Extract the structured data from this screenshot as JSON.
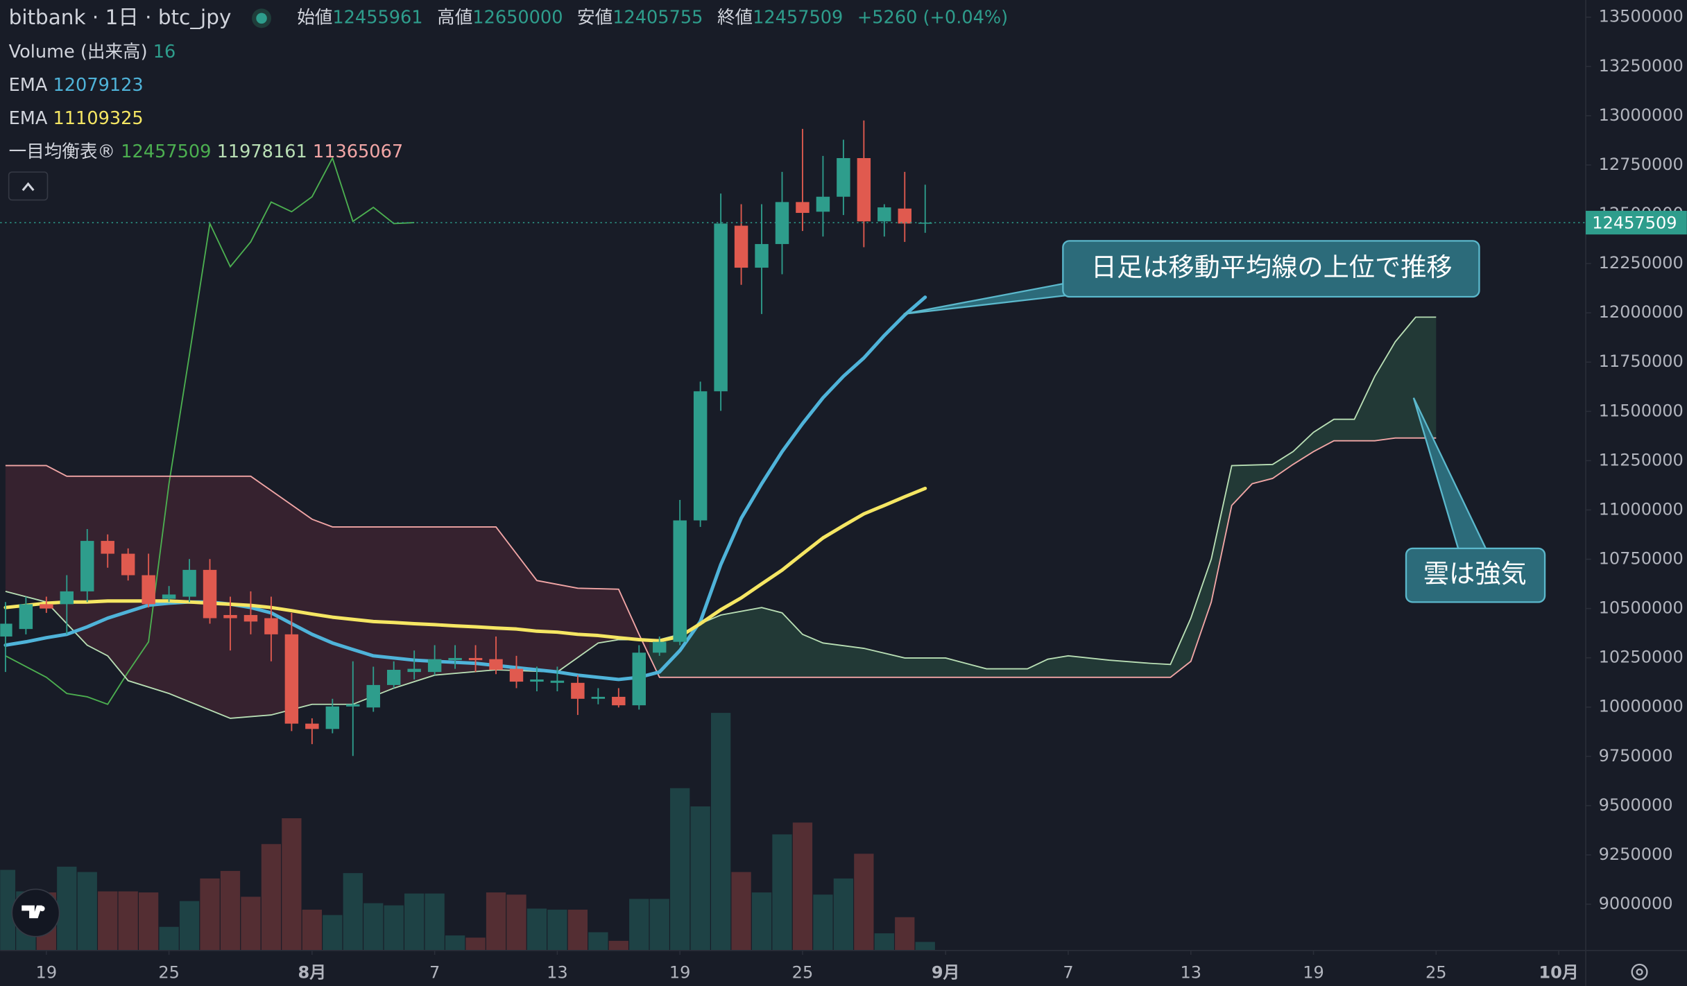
{
  "header": {
    "title": "bitbank · 1日 · btc_jpy",
    "ohlc_labels": [
      "始値",
      "高値",
      "安値",
      "終値"
    ],
    "change": "+5260 (+0.04%)"
  },
  "chart_data": {
    "type": "candlestick",
    "x": [
      0,
      1,
      2,
      3,
      4,
      5,
      6,
      7,
      8,
      9,
      10,
      11,
      12,
      13,
      14,
      15,
      16,
      17,
      18,
      19,
      20,
      21,
      22,
      23,
      24,
      25,
      26,
      27,
      28,
      29,
      30,
      31,
      32,
      33,
      34,
      35,
      36,
      37,
      38,
      39,
      40,
      41,
      42,
      43,
      44,
      45
    ],
    "xlim": [
      -0.26,
      77.32
    ],
    "xticks": [
      {
        "value": 2,
        "label": "19"
      },
      {
        "value": 8,
        "label": "25"
      },
      {
        "value": 15,
        "label": "8月"
      },
      {
        "value": 21,
        "label": "7"
      },
      {
        "value": 27,
        "label": "13"
      },
      {
        "value": 33,
        "label": "19"
      },
      {
        "value": 39,
        "label": "25"
      },
      {
        "value": 46,
        "label": "9月"
      },
      {
        "value": 52,
        "label": "7"
      },
      {
        "value": 58,
        "label": "13"
      },
      {
        "value": 64,
        "label": "19"
      },
      {
        "value": 70,
        "label": "25"
      },
      {
        "value": 76,
        "label": "10月"
      }
    ],
    "ylim": [
      8765000,
      13587000
    ],
    "yticks": [
      9000000,
      9250000,
      9500000,
      9750000,
      10000000,
      10250000,
      10500000,
      10750000,
      11000000,
      11250000,
      11500000,
      11750000,
      12000000,
      12250000,
      12500000,
      12750000,
      13000000,
      13250000,
      13500000
    ],
    "up_color": "#2e9d8c",
    "down_color": "#e05a4f",
    "open": [
      10358000,
      10396000,
      10522000,
      10522000,
      10587000,
      10843000,
      10778000,
      10669000,
      10549000,
      10560000,
      10696000,
      10467000,
      10467000,
      10451000,
      10369000,
      9916000,
      9889000,
      10003000,
      9998000,
      10112000,
      10178000,
      10178000,
      10238000,
      10249000,
      10243000,
      10194000,
      10129000,
      10123000,
      10123000,
      10042000,
      10052000,
      10009000,
      10276000,
      10331000,
      10947000,
      11602000,
      12442000,
      12229000,
      12349000,
      12562000,
      12513000,
      12589000,
      12785000,
      12464000,
      12529000,
      12455961
    ],
    "high": [
      10533000,
      10560000,
      10560000,
      10669000,
      10903000,
      10876000,
      10805000,
      10778000,
      10614000,
      10751000,
      10751000,
      10560000,
      10587000,
      10560000,
      10478000,
      9943000,
      10042000,
      10232000,
      10205000,
      10232000,
      10287000,
      10314000,
      10314000,
      10314000,
      10358000,
      10260000,
      10205000,
      10205000,
      10162000,
      10096000,
      10096000,
      10314000,
      10358000,
      11051000,
      11651000,
      12605000,
      12551000,
      12551000,
      12715000,
      12933000,
      12796000,
      12878000,
      12976000,
      12551000,
      12715000,
      12650000
    ],
    "low": [
      10178000,
      10369000,
      10478000,
      10369000,
      10533000,
      10707000,
      10642000,
      10505000,
      10533000,
      10533000,
      10423000,
      10287000,
      10369000,
      10232000,
      9878000,
      9812000,
      9867000,
      9752000,
      9976000,
      10096000,
      10140000,
      10162000,
      10194000,
      10178000,
      10167000,
      10096000,
      10080000,
      10080000,
      9960000,
      10014000,
      9998000,
      9987000,
      10260000,
      10314000,
      10914000,
      11503000,
      12142000,
      11994000,
      12196000,
      12415000,
      12387000,
      12496000,
      12333000,
      12387000,
      12360000,
      12405755
    ],
    "close": [
      10423000,
      10522000,
      10500000,
      10587000,
      10843000,
      10778000,
      10669000,
      10522000,
      10571000,
      10696000,
      10451000,
      10451000,
      10434000,
      10369000,
      9916000,
      9889000,
      10003000,
      10014000,
      10112000,
      10189000,
      10194000,
      10243000,
      10249000,
      10238000,
      10189000,
      10129000,
      10140000,
      10134000,
      10042000,
      10052000,
      10009000,
      10276000,
      10331000,
      10947000,
      11602000,
      12453000,
      12229000,
      12349000,
      12562000,
      12507000,
      12589000,
      12785000,
      12464000,
      12535000,
      12453000,
      12457509
    ],
    "volume": {
      "name": "Volume (出来高)",
      "ylim": [
        0,
        1768
      ],
      "values": [
        150,
        110,
        108,
        156,
        146,
        110,
        110,
        108,
        44,
        92,
        134,
        148,
        100,
        198,
        246,
        76,
        66,
        144,
        88,
        84,
        106,
        106,
        28,
        24,
        108,
        104,
        78,
        76,
        76,
        34,
        18,
        96,
        96,
        302,
        268,
        442,
        146,
        108,
        216,
        238,
        104,
        134,
        180,
        32,
        62,
        16
      ]
    },
    "series": [
      {
        "name": "EMA",
        "color": "#4fb3d9",
        "values": [
          10314000,
          10331000,
          10352000,
          10369000,
          10407000,
          10451000,
          10484000,
          10517000,
          10527000,
          10533000,
          10533000,
          10522000,
          10505000,
          10478000,
          10423000,
          10369000,
          10325000,
          10292000,
          10260000,
          10249000,
          10238000,
          10232000,
          10227000,
          10222000,
          10211000,
          10200000,
          10189000,
          10178000,
          10162000,
          10151000,
          10140000,
          10151000,
          10178000,
          10287000,
          10434000,
          10723000,
          10958000,
          11133000,
          11296000,
          11438000,
          11569000,
          11678000,
          11771000,
          11885000,
          11989000,
          12079123
        ]
      },
      {
        "name": "EMA",
        "color": "#f5e663",
        "values": [
          10505000,
          10516000,
          10527000,
          10533000,
          10533000,
          10538000,
          10538000,
          10538000,
          10538000,
          10533000,
          10527000,
          10522000,
          10516000,
          10505000,
          10489000,
          10472000,
          10456000,
          10445000,
          10434000,
          10429000,
          10423000,
          10418000,
          10412000,
          10407000,
          10401000,
          10396000,
          10385000,
          10380000,
          10369000,
          10363000,
          10352000,
          10342000,
          10336000,
          10358000,
          10423000,
          10494000,
          10554000,
          10625000,
          10695000,
          10777000,
          10858000,
          10920000,
          10980000,
          11023000,
          11067000,
          11109325
        ]
      }
    ],
    "ichimoku": {
      "name": "一目均衡表®",
      "cloud_up_color": "#2e5e4a",
      "cloud_down_color": "#5a2a3a",
      "lines": [
        {
          "color": "#4caf50",
          "x": [
            0,
            2,
            3,
            4,
            5,
            6,
            7,
            8,
            9,
            10,
            11,
            12,
            13,
            14,
            15,
            16,
            17,
            18,
            19,
            20
          ],
          "values": [
            10260000,
            10151000,
            10069000,
            10052000,
            10014000,
            10178000,
            10331000,
            11133000,
            11787000,
            12453000,
            12234000,
            12360000,
            12562000,
            12513000,
            12589000,
            12785000,
            12464000,
            12535000,
            12453000,
            12457509
          ]
        },
        {
          "color": "#b9dfb5",
          "x": [
            0,
            2,
            3,
            4,
            5,
            6,
            8,
            11,
            13,
            15,
            17,
            19,
            21,
            24,
            27,
            29,
            30,
            32,
            33,
            34,
            35,
            37,
            38,
            39,
            40,
            42,
            44,
            46,
            48,
            50,
            51,
            52,
            54,
            56,
            57,
            58,
            59,
            60,
            62,
            63,
            64,
            65,
            66,
            67,
            68,
            69,
            70
          ],
          "values": [
            10587000,
            10533000,
            10423000,
            10314000,
            10260000,
            10134000,
            10069000,
            9943000,
            9960000,
            10014000,
            10014000,
            10096000,
            10162000,
            10189000,
            10178000,
            10325000,
            10342000,
            10342000,
            10369000,
            10423000,
            10467000,
            10505000,
            10478000,
            10369000,
            10325000,
            10298000,
            10249000,
            10249000,
            10194000,
            10194000,
            10243000,
            10260000,
            10238000,
            10222000,
            10216000,
            10451000,
            10751000,
            11225000,
            11231000,
            11296000,
            11394000,
            11460000,
            11460000,
            11678000,
            11853000,
            11978161,
            11978161
          ]
        },
        {
          "color": "#f2a6a6",
          "x": [
            0,
            2,
            3,
            12,
            15,
            16,
            24,
            26,
            28,
            30,
            31,
            32,
            57,
            58,
            59,
            60,
            61,
            62,
            63,
            64,
            65,
            66,
            67,
            68,
            70
          ],
          "values": [
            11225000,
            11225000,
            11171000,
            11171000,
            10953000,
            10914000,
            10914000,
            10642000,
            10603000,
            10598000,
            10369000,
            10151000,
            10151000,
            10232000,
            10533000,
            11023000,
            11133000,
            11160000,
            11231000,
            11296000,
            11351000,
            11351000,
            11351000,
            11365067,
            11365067
          ]
        }
      ]
    },
    "annotations": [
      {
        "text": "日足は移動平均線の上位で推移"
      },
      {
        "text": "雲は強気"
      }
    ]
  }
}
